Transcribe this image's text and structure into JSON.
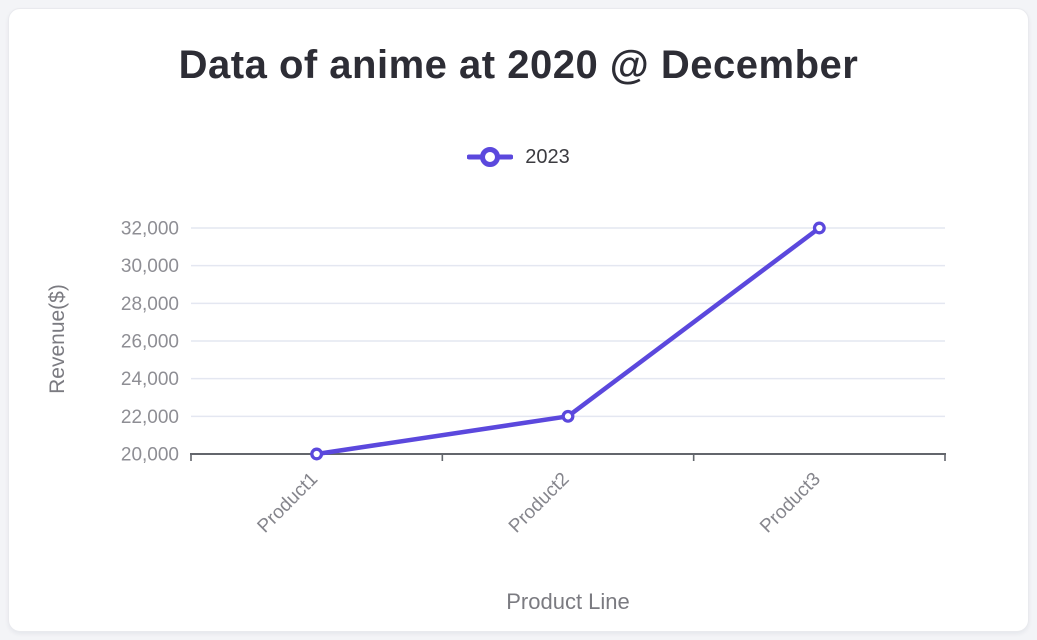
{
  "page": {
    "background": "#f3f4f7"
  },
  "chart_data": {
    "type": "line",
    "title": "Data of anime at 2020 @ December",
    "xlabel": "Product Line",
    "ylabel": "Revenue($)",
    "categories": [
      "Product1",
      "Product2",
      "Product3"
    ],
    "series": [
      {
        "name": "2023",
        "values": [
          20000,
          22000,
          32000
        ]
      }
    ],
    "ylim": [
      20000,
      32000
    ],
    "yticks": [
      {
        "value": 20000,
        "label": "20,000"
      },
      {
        "value": 22000,
        "label": "22,000"
      },
      {
        "value": 24000,
        "label": "24,000"
      },
      {
        "value": 26000,
        "label": "26,000"
      },
      {
        "value": 28000,
        "label": "28,000"
      },
      {
        "value": 30000,
        "label": "30,000"
      },
      {
        "value": 32000,
        "label": "32,000"
      }
    ],
    "grid": true,
    "legend_position": "top",
    "x_label_rotation": -45,
    "colors": {
      "series_line": "#5b48dd",
      "marker_fill": "#ffffff",
      "gridline": "#e4e7f1",
      "axis_line": "#63666c",
      "y_tick_label": "#8e8e94",
      "x_tick_label": "#85858c",
      "axis_title": "#7b7b81",
      "title": "#2d2d35",
      "legend_text": "#3b3b40"
    }
  }
}
